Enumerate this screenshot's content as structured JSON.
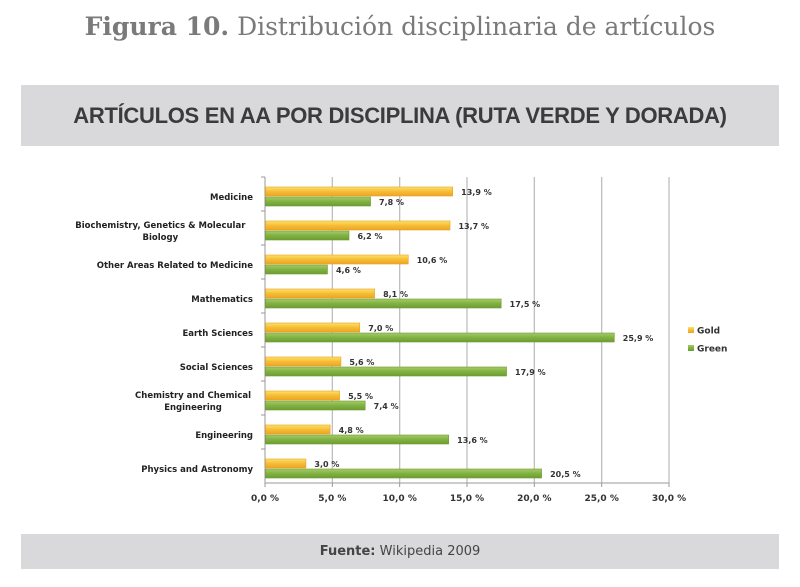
{
  "figure": {
    "label": "Figura 10.",
    "caption": "Distribución disciplinaria de artículos"
  },
  "footer": {
    "label": "Fuente:",
    "source": "Wikipedia 2009"
  },
  "colors": {
    "gold": "#f2b632",
    "gold_light": "#fbd54a",
    "green": "#7fb03f",
    "green_light": "#9cc55e",
    "grid": "#bfbfbf",
    "banner": "#d9d9db"
  },
  "chart_data": {
    "type": "bar",
    "orientation": "horizontal",
    "title": "ARTÍCULOS EN AA POR DISCIPLINA (RUTA VERDE Y DORADA)",
    "xlabel": "",
    "ylabel": "",
    "xlim": [
      0,
      30
    ],
    "grid": true,
    "legend_position": "right",
    "categories": [
      [
        "Medicine"
      ],
      [
        "Biochemistry, Genetics & Molecular",
        "Biology"
      ],
      [
        "Other Areas Related to Medicine"
      ],
      [
        "Mathematics"
      ],
      [
        "Earth Sciences"
      ],
      [
        "Social Sciences"
      ],
      [
        "Chemistry and Chemical",
        "Engineering"
      ],
      [
        "Engineering"
      ],
      [
        "Physics and Astronomy"
      ]
    ],
    "series": [
      {
        "name": "Gold",
        "values": [
          13.9,
          13.7,
          10.6,
          8.1,
          7.0,
          5.6,
          5.5,
          4.8,
          3.0
        ],
        "labels": [
          "13,9 %",
          "13,7 %",
          "10,6 %",
          "8,1 %",
          "7,0 %",
          "5,6 %",
          "5,5 %",
          "4,8 %",
          "3,0 %"
        ]
      },
      {
        "name": "Green",
        "values": [
          7.8,
          6.2,
          4.6,
          17.5,
          25.9,
          17.9,
          7.4,
          13.6,
          20.5
        ],
        "labels": [
          "7,8 %",
          "6,2 %",
          "4,6 %",
          "17,5 %",
          "25,9 %",
          "17,9 %",
          "7,4 %",
          "13,6 %",
          "20,5 %"
        ]
      }
    ],
    "x_ticks": [
      0,
      5,
      10,
      15,
      20,
      25,
      30
    ],
    "x_tick_labels": [
      "0,0 %",
      "5,0 %",
      "10,0 %",
      "15,0 %",
      "20,0 %",
      "25,0 %",
      "30,0 %"
    ]
  }
}
